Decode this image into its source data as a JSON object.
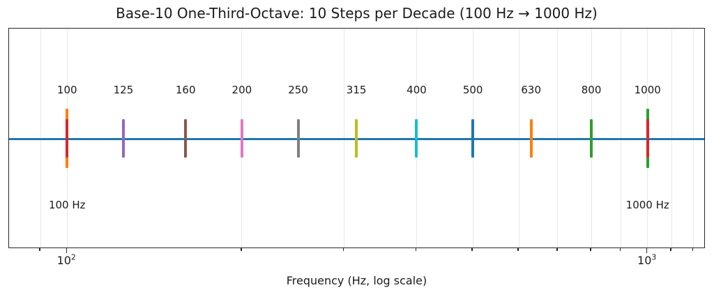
{
  "title": "Base-10 One-Third-Octave: 10 Steps per Decade (100 Hz → 1000 Hz)",
  "x_axis_label": "Frequency (Hz, log scale)",
  "colors": {
    "baseline": "#1f77b4",
    "grid": "#e7e7e7",
    "spine": "#262626",
    "text": "#1a1a1a",
    "start_endpoint": "#ff7f0e",
    "end_endpoint": "#2ca02c"
  },
  "chart_data": {
    "type": "scatter",
    "title": "Base-10 One-Third-Octave: 10 Steps per Decade (100 Hz → 1000 Hz)",
    "xlabel": "Frequency (Hz, log scale)",
    "xscale": "log",
    "xlim": [
      79.43,
      1258.93
    ],
    "grid": "vertical-only",
    "baseline": {
      "y": 0,
      "color": "#1f77b4"
    },
    "x_major_ticks": [
      {
        "hz": 100,
        "base": "10",
        "exponent": "2"
      },
      {
        "hz": 1000,
        "base": "10",
        "exponent": "3"
      }
    ],
    "x_minor_ticks_hz": [
      90,
      200,
      300,
      400,
      500,
      600,
      700,
      800,
      900,
      1100,
      1200
    ],
    "bands": [
      {
        "hz": 100,
        "label": "100",
        "color": "#d62728"
      },
      {
        "hz": 125,
        "label": "125",
        "color": "#9467bd"
      },
      {
        "hz": 160,
        "label": "160",
        "color": "#8c564b"
      },
      {
        "hz": 200,
        "label": "200",
        "color": "#e377c2"
      },
      {
        "hz": 250,
        "label": "250",
        "color": "#7f7f7f"
      },
      {
        "hz": 315,
        "label": "315",
        "color": "#bcbd22"
      },
      {
        "hz": 400,
        "label": "400",
        "color": "#17becf"
      },
      {
        "hz": 500,
        "label": "500",
        "color": "#1f77b4"
      },
      {
        "hz": 630,
        "label": "630",
        "color": "#ff7f0e"
      },
      {
        "hz": 800,
        "label": "800",
        "color": "#2ca02c"
      },
      {
        "hz": 1000,
        "label": "1000",
        "color": "#d62728"
      }
    ],
    "endpoints": [
      {
        "hz": 100,
        "annotation": "100 Hz",
        "color": "#ff7f0e"
      },
      {
        "hz": 1000,
        "annotation": "1000 Hz",
        "color": "#2ca02c"
      }
    ]
  }
}
